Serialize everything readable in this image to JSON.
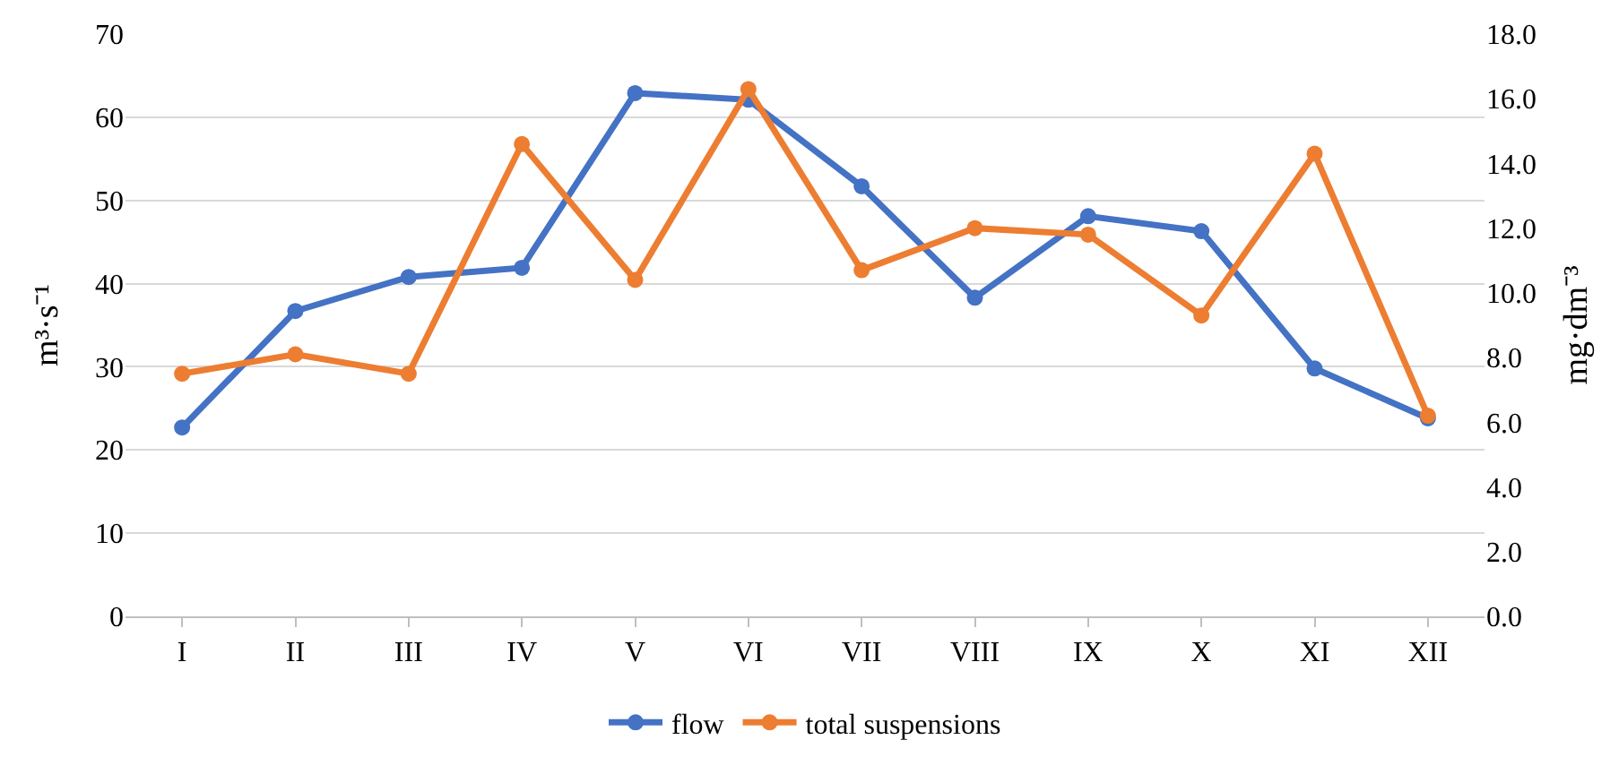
{
  "chart_data": {
    "type": "line",
    "categories": [
      "I",
      "II",
      "III",
      "IV",
      "V",
      "VI",
      "VII",
      "VIII",
      "IX",
      "X",
      "XI",
      "XII"
    ],
    "ylabel": "m³·s⁻¹",
    "y2label": "mg·dm⁻³",
    "series": [
      {
        "name": "flow",
        "color": "#4472c4",
        "values": [
          22.7,
          36.7,
          40.8,
          41.9,
          62.9,
          62.1,
          51.7,
          38.3,
          48.1,
          46.3,
          29.8,
          23.8
        ]
      },
      {
        "name": "total suspensions",
        "color": "#ed7d31",
        "axis": "y2",
        "values": [
          7.5,
          8.1,
          7.5,
          14.6,
          10.4,
          16.3,
          10.7,
          12.0,
          11.8,
          9.3,
          14.3,
          6.2
        ]
      }
    ],
    "ylim": [
      0,
      70
    ],
    "yticks": [
      0,
      10,
      20,
      30,
      40,
      50,
      60,
      70
    ],
    "y2lim": [
      0,
      18
    ],
    "y2ticks": [
      {
        "value": 0,
        "label": "0.0"
      },
      {
        "value": 2,
        "label": "2.0"
      },
      {
        "value": 4,
        "label": "4.0"
      },
      {
        "value": 6,
        "label": "6.0"
      },
      {
        "value": 8,
        "label": "8.0"
      },
      {
        "value": 10,
        "label": "10.0"
      },
      {
        "value": 12,
        "label": "12.0"
      },
      {
        "value": 14,
        "label": "14.0"
      },
      {
        "value": 16,
        "label": "16.0"
      },
      {
        "value": 18,
        "label": "18.0"
      }
    ],
    "grid": "y",
    "legend": "bottom",
    "marker": "circle",
    "line_style": "solid"
  }
}
